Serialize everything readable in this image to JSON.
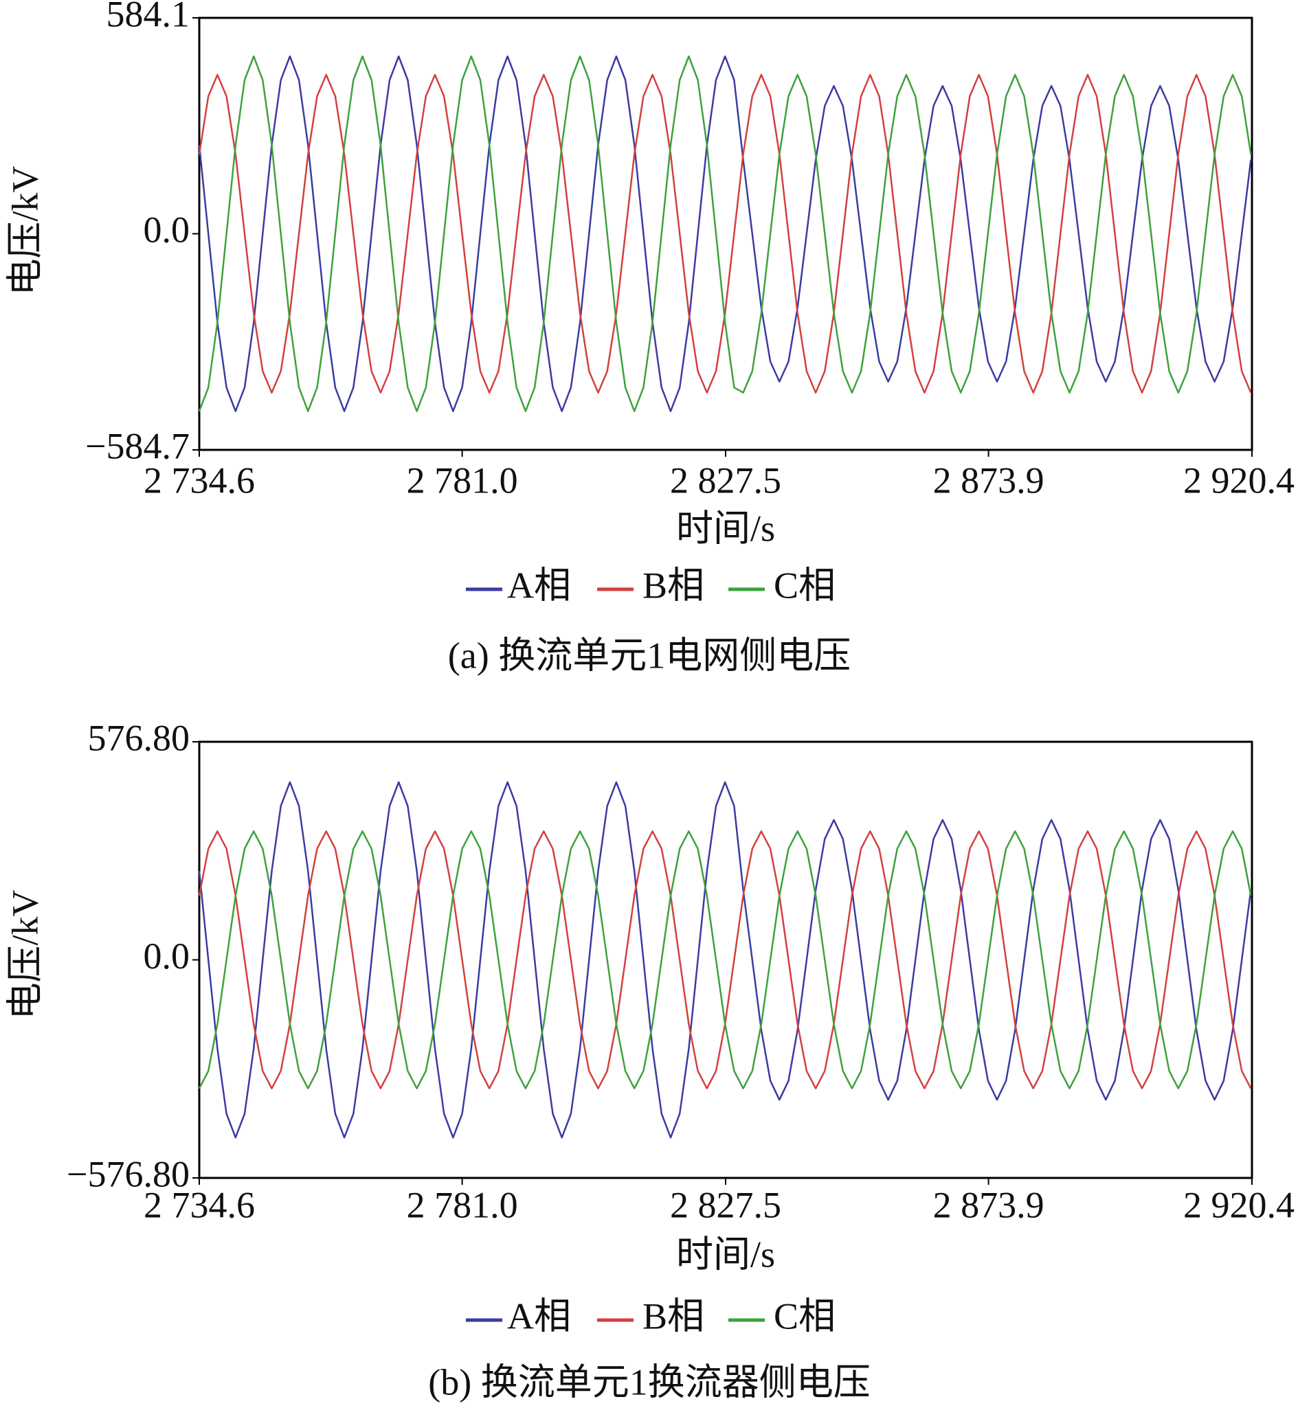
{
  "chart_data": [
    {
      "type": "line",
      "caption": "(a) 换流单元1电网侧电压",
      "x_label": "时间/s",
      "y_label": "电压/kV",
      "xlim": [
        2734.6,
        2920.4
      ],
      "xticks": [
        {
          "value": 2734.6,
          "label": "2 734.6"
        },
        {
          "value": 2781.0,
          "label": "2 781.0"
        },
        {
          "value": 2827.5,
          "label": "2 827.5"
        },
        {
          "value": 2873.9,
          "label": "2 873.9"
        },
        {
          "value": 2920.4,
          "label": "2 920.4"
        }
      ],
      "ylim": [
        -584.7,
        584.1
      ],
      "yticks": [
        584.1,
        {
          "value": 0,
          "label": "0.0"
        },
        {
          "value": -584.7,
          "label": "−584.7"
        }
      ],
      "x": [
        2734.6,
        2736.2,
        2737.8,
        2739.4,
        2741.0,
        2742.6,
        2744.2,
        2745.8,
        2747.4,
        2749.0,
        2750.6,
        2752.2,
        2753.8,
        2755.4,
        2757.0,
        2758.6,
        2760.2,
        2761.8,
        2763.4,
        2765.0,
        2766.6,
        2768.2,
        2769.8,
        2771.4,
        2773.0,
        2774.6,
        2776.2,
        2777.8,
        2779.4,
        2781.0,
        2782.6,
        2784.2,
        2785.8,
        2787.4,
        2789.0,
        2790.6,
        2792.2,
        2793.8,
        2795.4,
        2797.0,
        2798.6,
        2800.2,
        2801.8,
        2803.4,
        2805.0,
        2806.6,
        2808.2,
        2809.8,
        2811.4,
        2813.0,
        2814.6,
        2816.2,
        2817.8,
        2819.4,
        2821.0,
        2822.6,
        2824.2,
        2825.8,
        2827.4,
        2829.0,
        2830.6,
        2832.2,
        2833.8,
        2835.4,
        2837.0,
        2838.6,
        2840.2,
        2841.8,
        2843.4,
        2845.0,
        2846.6,
        2848.2,
        2849.8,
        2851.4,
        2853.0,
        2854.6,
        2856.2,
        2857.8,
        2859.4,
        2861.0,
        2862.6,
        2864.2,
        2865.8,
        2867.4,
        2869.0,
        2870.6,
        2872.2,
        2873.8,
        2875.4,
        2877.0,
        2878.6,
        2880.2,
        2881.8,
        2883.4,
        2885.0,
        2886.6,
        2888.2,
        2889.8,
        2891.4,
        2893.0,
        2894.6,
        2896.2,
        2897.8,
        2899.4,
        2901.0,
        2902.6,
        2904.2,
        2905.8,
        2907.4,
        2909.0,
        2910.6,
        2912.2,
        2913.8,
        2915.4,
        2917.0,
        2918.6,
        2920.2
      ],
      "series": [
        {
          "name": "A相",
          "color": "#3b3ba3",
          "values": [
            240,
            0,
            -240,
            -416,
            -480,
            -416,
            -240,
            0,
            240,
            416,
            480,
            416,
            240,
            0,
            -240,
            -416,
            -480,
            -416,
            -240,
            0,
            240,
            416,
            480,
            416,
            240,
            0,
            -240,
            -416,
            -480,
            -416,
            -240,
            0,
            240,
            416,
            480,
            416,
            240,
            0,
            -240,
            -416,
            -480,
            -416,
            -240,
            0,
            240,
            416,
            480,
            416,
            240,
            0,
            -240,
            -416,
            -480,
            -416,
            -240,
            0,
            240,
            416,
            480,
            416,
            200,
            0,
            -200,
            -346,
            -400,
            -346,
            -200,
            0,
            200,
            346,
            400,
            346,
            200,
            0,
            -200,
            -346,
            -400,
            -346,
            -200,
            0,
            200,
            346,
            400,
            346,
            200,
            0,
            -200,
            -346,
            -400,
            -346,
            -200,
            0,
            200,
            346,
            400,
            346,
            200,
            0,
            -200,
            -346,
            -400,
            -346,
            -200,
            0,
            200,
            346,
            400,
            346,
            200,
            0,
            -200,
            -346,
            -400,
            -346,
            -200,
            0,
            200
          ]
        },
        {
          "name": "B相",
          "color": "#d2403f",
          "values": [
            215,
            372,
            430,
            372,
            215,
            0,
            -215,
            -372,
            -430,
            -372,
            -215,
            0,
            215,
            372,
            430,
            372,
            215,
            0,
            -215,
            -372,
            -430,
            -372,
            -215,
            0,
            215,
            372,
            430,
            372,
            215,
            0,
            -215,
            -372,
            -430,
            -372,
            -215,
            0,
            215,
            372,
            430,
            372,
            215,
            0,
            -215,
            -372,
            -430,
            -372,
            -215,
            0,
            215,
            372,
            430,
            372,
            215,
            0,
            -215,
            -372,
            -430,
            -372,
            -215,
            0,
            215,
            372,
            430,
            372,
            215,
            0,
            -215,
            -372,
            -430,
            -372,
            -215,
            0,
            215,
            372,
            430,
            372,
            215,
            0,
            -215,
            -372,
            -430,
            -372,
            -215,
            0,
            215,
            372,
            430,
            372,
            215,
            0,
            -215,
            -372,
            -430,
            -372,
            -215,
            0,
            215,
            372,
            430,
            372,
            215,
            0,
            -215,
            -372,
            -430,
            -372,
            -215,
            0,
            215,
            372,
            430,
            372,
            215,
            0,
            -215,
            -372,
            -430
          ]
        },
        {
          "name": "C相",
          "color": "#3ea13e",
          "values": [
            -480,
            -416,
            -240,
            0,
            240,
            416,
            480,
            416,
            240,
            0,
            -240,
            -416,
            -480,
            -416,
            -240,
            0,
            240,
            416,
            480,
            416,
            240,
            0,
            -240,
            -416,
            -480,
            -416,
            -240,
            0,
            240,
            416,
            480,
            416,
            240,
            0,
            -240,
            -416,
            -480,
            -416,
            -240,
            0,
            240,
            416,
            480,
            416,
            240,
            0,
            -240,
            -416,
            -480,
            -416,
            -240,
            0,
            240,
            416,
            480,
            416,
            240,
            0,
            -240,
            -416,
            -430,
            -372,
            -215,
            0,
            215,
            372,
            430,
            372,
            215,
            0,
            -215,
            -372,
            -430,
            -372,
            -215,
            0,
            215,
            372,
            430,
            372,
            215,
            0,
            -215,
            -372,
            -430,
            -372,
            -215,
            0,
            215,
            372,
            430,
            372,
            215,
            0,
            -215,
            -372,
            -430,
            -372,
            -215,
            0,
            215,
            372,
            430,
            372,
            215,
            0,
            -215,
            -372,
            -430,
            -372,
            -215,
            0,
            215,
            372,
            430,
            372,
            215
          ]
        }
      ]
    },
    {
      "type": "line",
      "caption": "(b) 换流单元1换流器侧电压",
      "x_label": "时间/s",
      "y_label": "电压/kV",
      "xlim": [
        2734.6,
        2920.4
      ],
      "xticks": [
        {
          "value": 2734.6,
          "label": "2 734.6"
        },
        {
          "value": 2781.0,
          "label": "2 781.0"
        },
        {
          "value": 2827.5,
          "label": "2 827.5"
        },
        {
          "value": 2873.9,
          "label": "2 873.9"
        },
        {
          "value": 2920.4,
          "label": "2 920.4"
        }
      ],
      "ylim": [
        -576.8,
        576.8
      ],
      "yticks": [
        {
          "value": 576.8,
          "label": "576.80"
        },
        {
          "value": 0,
          "label": "0.0"
        },
        {
          "value": -576.8,
          "label": "−576.80"
        }
      ],
      "x": [
        2734.6,
        2736.2,
        2737.8,
        2739.4,
        2741.0,
        2742.6,
        2744.2,
        2745.8,
        2747.4,
        2749.0,
        2750.6,
        2752.2,
        2753.8,
        2755.4,
        2757.0,
        2758.6,
        2760.2,
        2761.8,
        2763.4,
        2765.0,
        2766.6,
        2768.2,
        2769.8,
        2771.4,
        2773.0,
        2774.6,
        2776.2,
        2777.8,
        2779.4,
        2781.0,
        2782.6,
        2784.2,
        2785.8,
        2787.4,
        2789.0,
        2790.6,
        2792.2,
        2793.8,
        2795.4,
        2797.0,
        2798.6,
        2800.2,
        2801.8,
        2803.4,
        2805.0,
        2806.6,
        2808.2,
        2809.8,
        2811.4,
        2813.0,
        2814.6,
        2816.2,
        2817.8,
        2819.4,
        2821.0,
        2822.6,
        2824.2,
        2825.8,
        2827.4,
        2829.0,
        2830.6,
        2832.2,
        2833.8,
        2835.4,
        2837.0,
        2838.6,
        2840.2,
        2841.8,
        2843.4,
        2845.0,
        2846.6,
        2848.2,
        2849.8,
        2851.4,
        2853.0,
        2854.6,
        2856.2,
        2857.8,
        2859.4,
        2861.0,
        2862.6,
        2864.2,
        2865.8,
        2867.4,
        2869.0,
        2870.6,
        2872.2,
        2873.8,
        2875.4,
        2877.0,
        2878.6,
        2880.2,
        2881.8,
        2883.4,
        2885.0,
        2886.6,
        2888.2,
        2889.8,
        2891.4,
        2893.0,
        2894.6,
        2896.2,
        2897.8,
        2899.4,
        2901.0,
        2902.6,
        2904.2,
        2905.8,
        2907.4,
        2909.0,
        2910.6,
        2912.2,
        2913.8,
        2915.4,
        2917.0,
        2918.6,
        2920.2
      ],
      "series": [
        {
          "name": "A相",
          "color": "#3b3ba3",
          "values": [
            235,
            0,
            -235,
            -407,
            -470,
            -407,
            -235,
            0,
            235,
            407,
            470,
            407,
            235,
            0,
            -235,
            -407,
            -470,
            -407,
            -235,
            0,
            235,
            407,
            470,
            407,
            235,
            0,
            -235,
            -407,
            -470,
            -407,
            -235,
            0,
            235,
            407,
            470,
            407,
            235,
            0,
            -235,
            -407,
            -470,
            -407,
            -235,
            0,
            235,
            407,
            470,
            407,
            235,
            0,
            -235,
            -407,
            -470,
            -407,
            -235,
            0,
            235,
            407,
            470,
            407,
            185,
            0,
            -185,
            -320,
            -370,
            -320,
            -185,
            0,
            185,
            320,
            370,
            320,
            185,
            0,
            -185,
            -320,
            -370,
            -320,
            -185,
            0,
            185,
            320,
            370,
            320,
            185,
            0,
            -185,
            -320,
            -370,
            -320,
            -185,
            0,
            185,
            320,
            370,
            320,
            185,
            0,
            -185,
            -320,
            -370,
            -320,
            -185,
            0,
            185,
            320,
            370,
            320,
            185,
            0,
            -185,
            -320,
            -370,
            -320,
            -185,
            0,
            185
          ]
        },
        {
          "name": "B相",
          "color": "#d2403f",
          "values": [
            170,
            294,
            340,
            294,
            170,
            0,
            -170,
            -294,
            -340,
            -294,
            -170,
            0,
            170,
            294,
            340,
            294,
            170,
            0,
            -170,
            -294,
            -340,
            -294,
            -170,
            0,
            170,
            294,
            340,
            294,
            170,
            0,
            -170,
            -294,
            -340,
            -294,
            -170,
            0,
            170,
            294,
            340,
            294,
            170,
            0,
            -170,
            -294,
            -340,
            -294,
            -170,
            0,
            170,
            294,
            340,
            294,
            170,
            0,
            -170,
            -294,
            -340,
            -294,
            -170,
            0,
            170,
            294,
            340,
            294,
            170,
            0,
            -170,
            -294,
            -340,
            -294,
            -170,
            0,
            170,
            294,
            340,
            294,
            170,
            0,
            -170,
            -294,
            -340,
            -294,
            -170,
            0,
            170,
            294,
            340,
            294,
            170,
            0,
            -170,
            -294,
            -340,
            -294,
            -170,
            0,
            170,
            294,
            340,
            294,
            170,
            0,
            -170,
            -294,
            -340,
            -294,
            -170,
            0,
            170,
            294,
            340,
            294,
            170,
            0,
            -170,
            -294,
            -340
          ]
        },
        {
          "name": "C相",
          "color": "#3ea13e",
          "values": [
            -340,
            -294,
            -170,
            0,
            170,
            294,
            340,
            294,
            170,
            0,
            -170,
            -294,
            -340,
            -294,
            -170,
            0,
            170,
            294,
            340,
            294,
            170,
            0,
            -170,
            -294,
            -340,
            -294,
            -170,
            0,
            170,
            294,
            340,
            294,
            170,
            0,
            -170,
            -294,
            -340,
            -294,
            -170,
            0,
            170,
            294,
            340,
            294,
            170,
            0,
            -170,
            -294,
            -340,
            -294,
            -170,
            0,
            170,
            294,
            340,
            294,
            170,
            0,
            -170,
            -294,
            -340,
            -294,
            -170,
            0,
            170,
            294,
            340,
            294,
            170,
            0,
            -170,
            -294,
            -340,
            -294,
            -170,
            0,
            170,
            294,
            340,
            294,
            170,
            0,
            -170,
            -294,
            -340,
            -294,
            -170,
            0,
            170,
            294,
            340,
            294,
            170,
            0,
            -170,
            -294,
            -340,
            -294,
            -170,
            0,
            170,
            294,
            340,
            294,
            170,
            0,
            -170,
            -294,
            -340,
            -294,
            -170,
            0,
            170,
            294,
            340,
            294,
            170
          ]
        }
      ]
    }
  ]
}
